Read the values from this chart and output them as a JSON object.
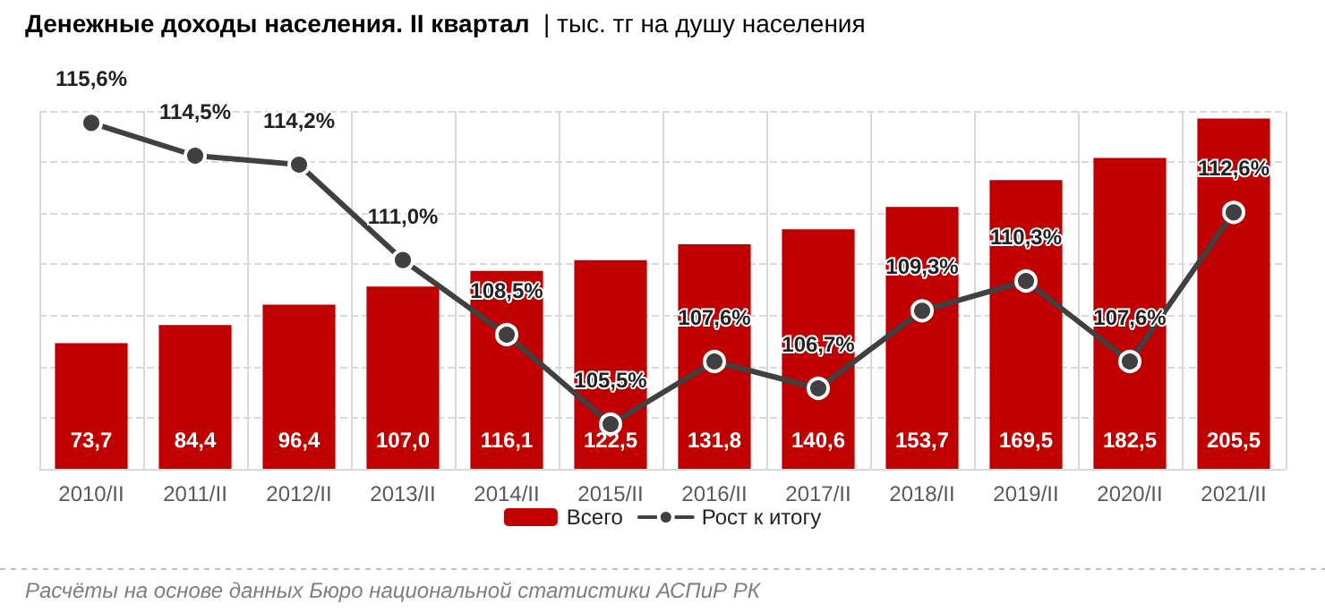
{
  "chart_data": {
    "type": "bar",
    "title": "Денежные доходы населения. II квартал",
    "subtitle": "| тыс. тг на душу населения",
    "categories": [
      "2010/II",
      "2011/II",
      "2012/II",
      "2013/II",
      "2014/II",
      "2015/II",
      "2016/II",
      "2017/II",
      "2018/II",
      "2019/II",
      "2020/II",
      "2021/II"
    ],
    "series": [
      {
        "name": "Всего",
        "color": "#c00000",
        "values": [
          73.7,
          84.4,
          96.4,
          107.0,
          116.1,
          122.5,
          131.8,
          140.6,
          153.7,
          169.5,
          182.5,
          205.5
        ],
        "value_labels": [
          "73,7",
          "84,4",
          "96,4",
          "107,0",
          "116,1",
          "122,5",
          "131,8",
          "140,6",
          "153,7",
          "169,5",
          "182,5",
          "205,5"
        ]
      },
      {
        "name": "Рост к итогу",
        "type": "line",
        "axis": "y2",
        "color": "#404040",
        "marker": "circle",
        "values": [
          115.6,
          114.5,
          114.2,
          111.0,
          108.5,
          105.5,
          107.6,
          106.7,
          109.3,
          110.3,
          107.6,
          112.6
        ],
        "value_labels": [
          "115,6%",
          "114,5%",
          "114,2%",
          "111,0%",
          "108,5%",
          "105,5%",
          "107,6%",
          "106,7%",
          "109,3%",
          "110,3%",
          "107,6%",
          "112,6%"
        ]
      }
    ],
    "grid": true,
    "legend": "bottom",
    "tick_labels": "x",
    "annotations": [
      "Расчёты на основе данных Бюро национальной статистики АСПиР РК"
    ]
  }
}
